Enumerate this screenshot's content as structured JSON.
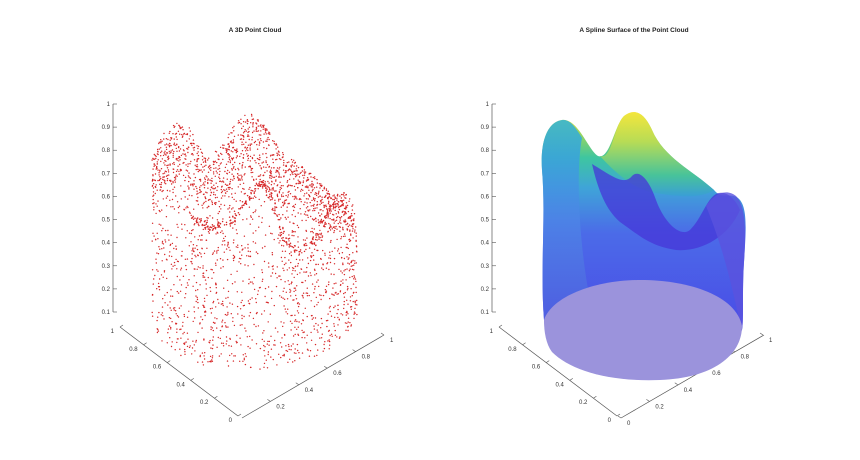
{
  "chart_data": [
    {
      "type": "scatter",
      "projection": "3d",
      "title": "A 3D Point Cloud",
      "xlabel": "",
      "ylabel": "",
      "zlabel": "",
      "xlim": [
        0,
        1
      ],
      "ylim": [
        0,
        1
      ],
      "zlim": [
        0.1,
        1
      ],
      "x_ticks": [
        "0.2",
        "0.4",
        "0.6",
        "0.8",
        "1"
      ],
      "y_ticks": [
        "0",
        "0.2",
        "0.4",
        "0.6",
        "0.8",
        "1"
      ],
      "z_ticks": [
        "0.1",
        "0.2",
        "0.3",
        "0.4",
        "0.5",
        "0.6",
        "0.7",
        "0.8",
        "0.9",
        "1"
      ],
      "marker_color": "#d62728",
      "grid": false,
      "surface_peaks": [
        {
          "x": 0.18,
          "y": 0.82,
          "z": 0.92
        },
        {
          "x": 0.55,
          "y": 0.85,
          "z": 0.96
        },
        {
          "x": 0.4,
          "y": 0.45,
          "z": 0.78
        },
        {
          "x": 0.88,
          "y": 0.3,
          "z": 0.72
        }
      ],
      "base_z": 0.1
    },
    {
      "type": "surface",
      "projection": "3d",
      "title": "A Spline Surface of the Point Cloud",
      "xlabel": "",
      "ylabel": "",
      "zlabel": "",
      "xlim": [
        0,
        1
      ],
      "ylim": [
        0,
        1
      ],
      "zlim": [
        0.1,
        1
      ],
      "x_ticks": [
        "0",
        "0.2",
        "0.4",
        "0.6",
        "0.8",
        "1"
      ],
      "y_ticks": [
        "0",
        "0.2",
        "0.4",
        "0.6",
        "0.8",
        "1"
      ],
      "z_ticks": [
        "0.1",
        "0.2",
        "0.3",
        "0.4",
        "0.5",
        "0.6",
        "0.7",
        "0.8",
        "0.9",
        "1"
      ],
      "colormap": [
        "#4a3fe6",
        "#4b6be8",
        "#3fa4d8",
        "#3ec6a0",
        "#9fd65a",
        "#f0e445"
      ],
      "base_color": "#9b93dc",
      "grid": false
    }
  ]
}
